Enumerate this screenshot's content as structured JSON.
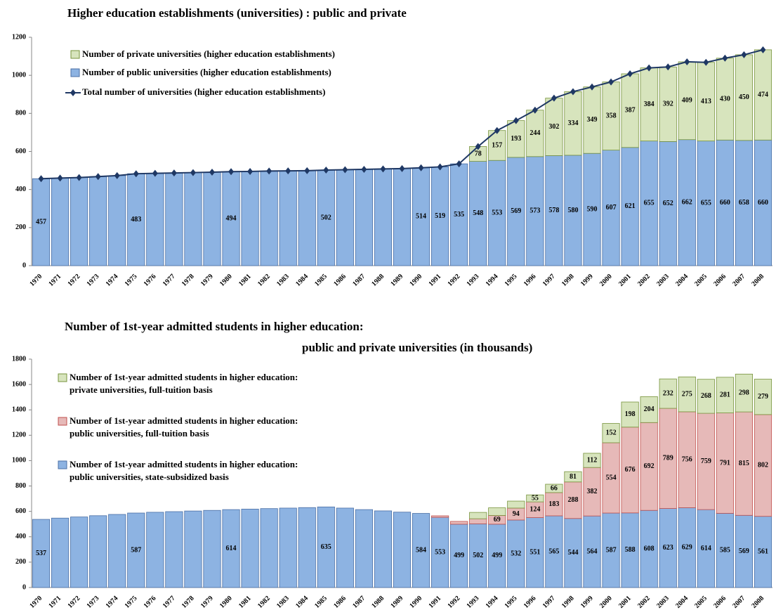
{
  "chart_data": [
    {
      "type": "bar",
      "stacked": true,
      "title": "Higher education establishments (universities) : public and private",
      "categories": [
        "1970",
        "1971",
        "1972",
        "1973",
        "1974",
        "1975",
        "1976",
        "1977",
        "1978",
        "1979",
        "1980",
        "1981",
        "1982",
        "1983",
        "1984",
        "1985",
        "1986",
        "1987",
        "1988",
        "1989",
        "1990",
        "1991",
        "1992",
        "1993",
        "1994",
        "1995",
        "1996",
        "1997",
        "1998",
        "1999",
        "2000",
        "2001",
        "2002",
        "2003",
        "2004",
        "2005",
        "2006",
        "2007",
        "2008"
      ],
      "ylim": [
        0,
        1200
      ],
      "yticks": [
        0,
        200,
        400,
        600,
        800,
        1000,
        1200
      ],
      "series": [
        {
          "name": "Number of public universities (higher education establishments)",
          "color": "#8db3e2",
          "values": [
            457,
            460,
            463,
            468,
            473,
            483,
            485,
            487,
            489,
            491,
            494,
            495,
            497,
            498,
            499,
            502,
            504,
            506,
            508,
            510,
            514,
            519,
            535,
            548,
            553,
            569,
            573,
            578,
            580,
            590,
            607,
            621,
            655,
            652,
            662,
            655,
            660,
            658,
            660
          ],
          "value_labels": [
            "457",
            null,
            null,
            null,
            null,
            "483",
            null,
            null,
            null,
            null,
            "494",
            null,
            null,
            null,
            null,
            "502",
            null,
            null,
            null,
            null,
            "514",
            "519",
            "535",
            "548",
            "553",
            "569",
            "573",
            "578",
            "580",
            "590",
            "607",
            "621",
            "655",
            "652",
            "662",
            "655",
            "660",
            "658",
            "660"
          ]
        },
        {
          "name": "Number of private universities (higher education establishments)",
          "color": "#d7e4bd",
          "values": [
            null,
            null,
            null,
            null,
            null,
            null,
            null,
            null,
            null,
            null,
            null,
            null,
            null,
            null,
            null,
            null,
            null,
            null,
            null,
            null,
            null,
            null,
            null,
            78,
            157,
            193,
            244,
            302,
            334,
            349,
            358,
            387,
            384,
            392,
            409,
            413,
            430,
            450,
            474
          ],
          "value_labels": [
            null,
            null,
            null,
            null,
            null,
            null,
            null,
            null,
            null,
            null,
            null,
            null,
            null,
            null,
            null,
            null,
            null,
            null,
            null,
            null,
            null,
            null,
            null,
            "78",
            "157",
            "193",
            "244",
            "302",
            "334",
            "349",
            "358",
            "387",
            "384",
            "392",
            "409",
            "413",
            "430",
            "450",
            "474"
          ]
        },
        {
          "name": "Total number of universities (higher education establishments)",
          "color": "#1f3864",
          "type": "line",
          "values": [
            457,
            460,
            463,
            468,
            473,
            483,
            485,
            487,
            489,
            491,
            494,
            495,
            497,
            498,
            499,
            502,
            504,
            506,
            508,
            510,
            514,
            519,
            535,
            626,
            710,
            762,
            817,
            880,
            914,
            939,
            965,
            1008,
            1039,
            1044,
            1071,
            1068,
            1090,
            1108,
            1134
          ]
        }
      ]
    },
    {
      "type": "bar",
      "stacked": true,
      "title": "Number of 1st-year admitted students in higher education:",
      "subtitle": "public and private  universities (in thousands)",
      "categories": [
        "1970",
        "1971",
        "1972",
        "1973",
        "1974",
        "1975",
        "1976",
        "1977",
        "1978",
        "1979",
        "1980",
        "1981",
        "1982",
        "1983",
        "1984",
        "1985",
        "1986",
        "1987",
        "1988",
        "1989",
        "1990",
        "1991",
        "1992",
        "1993",
        "1994",
        "1995",
        "1996",
        "1997",
        "1998",
        "1999",
        "2000",
        "2001",
        "2002",
        "2003",
        "2004",
        "2005",
        "2006",
        "2007",
        "2008"
      ],
      "ylim": [
        0,
        1800
      ],
      "yticks": [
        0,
        200,
        400,
        600,
        800,
        1000,
        1200,
        1400,
        1600,
        1800
      ],
      "series": [
        {
          "name": "Number of 1st-year admitted students in higher education: public universities, state-subsidized basis",
          "color": "#8db3e2",
          "values": [
            537,
            547,
            556,
            566,
            576,
            587,
            593,
            598,
            603,
            608,
            614,
            618,
            622,
            626,
            630,
            635,
            626,
            614,
            604,
            594,
            584,
            553,
            499,
            502,
            499,
            532,
            551,
            565,
            544,
            564,
            587,
            588,
            608,
            623,
            629,
            614,
            585,
            569,
            561
          ],
          "value_labels": [
            "537",
            null,
            null,
            null,
            null,
            "587",
            null,
            null,
            null,
            null,
            "614",
            null,
            null,
            null,
            null,
            "635",
            null,
            null,
            null,
            null,
            "584",
            "553",
            "499",
            "502",
            "499",
            "532",
            "551",
            "565",
            "544",
            "564",
            "587",
            "588",
            "608",
            "623",
            "629",
            "614",
            "585",
            "569",
            "561"
          ]
        },
        {
          "name": "Number of 1st-year admitted students in higher education: public universities, full-tuition basis",
          "color": "#e6b9b8",
          "values": [
            null,
            null,
            null,
            null,
            null,
            null,
            null,
            null,
            null,
            null,
            null,
            null,
            null,
            null,
            null,
            null,
            null,
            null,
            null,
            null,
            null,
            12,
            22,
            40,
            69,
            94,
            124,
            183,
            288,
            382,
            554,
            676,
            692,
            789,
            756,
            759,
            791,
            815,
            802
          ],
          "value_labels": [
            null,
            null,
            null,
            null,
            null,
            null,
            null,
            null,
            null,
            null,
            null,
            null,
            null,
            null,
            null,
            null,
            null,
            null,
            null,
            null,
            null,
            null,
            null,
            null,
            "69",
            "94",
            "124",
            "183",
            "288",
            "382",
            "554",
            "676",
            "692",
            "789",
            "756",
            "759",
            "791",
            "815",
            "802"
          ]
        },
        {
          "name": "Number of 1st-year admitted students in higher education: private universities, full-tuition basis",
          "color": "#d7e4bd",
          "values": [
            null,
            null,
            null,
            null,
            null,
            null,
            null,
            null,
            null,
            null,
            null,
            null,
            null,
            null,
            null,
            null,
            null,
            null,
            null,
            null,
            null,
            null,
            null,
            50,
            60,
            55,
            55,
            66,
            81,
            112,
            152,
            198,
            204,
            232,
            275,
            268,
            281,
            298,
            279
          ],
          "value_labels": [
            null,
            null,
            null,
            null,
            null,
            null,
            null,
            null,
            null,
            null,
            null,
            null,
            null,
            null,
            null,
            null,
            null,
            null,
            null,
            null,
            null,
            null,
            null,
            null,
            null,
            null,
            "55",
            "66",
            "81",
            "112",
            "152",
            "198",
            "204",
            "232",
            "275",
            "268",
            "281",
            "298",
            "279"
          ]
        }
      ]
    }
  ]
}
